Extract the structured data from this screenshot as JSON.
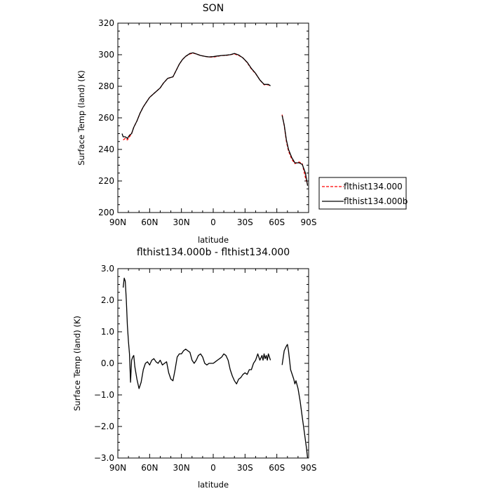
{
  "chart_data": [
    {
      "type": "line",
      "title": "SON",
      "xlabel": "latitude",
      "ylabel": "Surface Temp (land) (K)",
      "xlim": [
        90,
        -90
      ],
      "ylim": [
        200,
        320
      ],
      "x_ticks": [
        90,
        60,
        30,
        0,
        -30,
        -60,
        -90
      ],
      "x_tick_labels": [
        "90N",
        "60N",
        "30N",
        "0",
        "30S",
        "60S",
        "90S"
      ],
      "y_ticks": [
        200,
        220,
        240,
        260,
        280,
        300,
        320
      ],
      "y_tick_labels": [
        "200",
        "220",
        "240",
        "260",
        "280",
        "300",
        "320"
      ],
      "legend": "right, outside plot",
      "series": [
        {
          "name": "flthist134.000",
          "color": "#ff0000",
          "dash": "dashed",
          "segments": [
            [
              [
                85,
                246
              ],
              [
                83,
                247
              ],
              [
                81,
                246
              ],
              [
                79,
                248
              ],
              [
                77,
                250
              ],
              [
                75,
                254
              ],
              [
                72,
                258
              ],
              [
                69,
                263
              ],
              [
                66,
                267
              ],
              [
                63,
                270
              ],
              [
                60,
                273
              ],
              [
                55,
                276
              ],
              [
                50,
                279
              ],
              [
                47,
                282
              ],
              [
                43,
                285
              ],
              [
                38,
                286
              ],
              [
                35,
                290
              ],
              [
                32,
                294
              ],
              [
                29,
                297
              ],
              [
                26,
                299
              ],
              [
                22,
                300.5
              ],
              [
                19,
                301
              ],
              [
                16,
                300.5
              ],
              [
                12,
                299.5
              ],
              [
                8,
                299
              ],
              [
                4,
                298.5
              ],
              [
                0,
                298.5
              ],
              [
                -4,
                299
              ],
              [
                -8,
                299.5
              ],
              [
                -12,
                299.5
              ],
              [
                -16,
                300
              ],
              [
                -20,
                300.5
              ],
              [
                -24,
                299.5
              ],
              [
                -28,
                298
              ],
              [
                -32,
                295
              ],
              [
                -36,
                291
              ],
              [
                -40,
                288
              ],
              [
                -44,
                284
              ],
              [
                -48,
                281
              ],
              [
                -52,
                281
              ],
              [
                -54,
                280
              ]
            ],
            [
              [
                -65,
                262
              ],
              [
                -67,
                255
              ],
              [
                -69,
                245
              ],
              [
                -71,
                239
              ],
              [
                -74,
                234
              ],
              [
                -77,
                231
              ],
              [
                -81,
                232
              ],
              [
                -84,
                231
              ],
              [
                -87,
                222
              ],
              [
                -89,
                218
              ]
            ]
          ]
        },
        {
          "name": "flthist134.000b",
          "color": "#000000",
          "dash": "solid",
          "segments": [
            [
              [
                86,
                250
              ],
              [
                85,
                248
              ],
              [
                83,
                248
              ],
              [
                81,
                247
              ],
              [
                79,
                249
              ],
              [
                77,
                250
              ],
              [
                75,
                254
              ],
              [
                72,
                258
              ],
              [
                69,
                263
              ],
              [
                66,
                267
              ],
              [
                63,
                270
              ],
              [
                60,
                273
              ],
              [
                55,
                276
              ],
              [
                50,
                279
              ],
              [
                47,
                282
              ],
              [
                43,
                285
              ],
              [
                38,
                286
              ],
              [
                35,
                290
              ],
              [
                32,
                294
              ],
              [
                29,
                297
              ],
              [
                26,
                299
              ],
              [
                22,
                300.8
              ],
              [
                19,
                301.2
              ],
              [
                16,
                300.5
              ],
              [
                12,
                299.5
              ],
              [
                8,
                299
              ],
              [
                4,
                298.6
              ],
              [
                0,
                298.8
              ],
              [
                -4,
                299.2
              ],
              [
                -8,
                299.5
              ],
              [
                -12,
                299.7
              ],
              [
                -16,
                300
              ],
              [
                -20,
                300.8
              ],
              [
                -24,
                299.8
              ],
              [
                -28,
                298
              ],
              [
                -32,
                295.2
              ],
              [
                -36,
                291.3
              ],
              [
                -40,
                288.2
              ],
              [
                -44,
                284
              ],
              [
                -48,
                281.2
              ],
              [
                -52,
                281.2
              ],
              [
                -54,
                280.3
              ]
            ],
            [
              [
                -65,
                261.5
              ],
              [
                -67,
                255.5
              ],
              [
                -69,
                246
              ],
              [
                -71,
                240
              ],
              [
                -74,
                235
              ],
              [
                -77,
                231.5
              ],
              [
                -81,
                231.5
              ],
              [
                -84,
                230.5
              ],
              [
                -87,
                225
              ],
              [
                -89,
                217
              ]
            ]
          ]
        }
      ]
    },
    {
      "type": "line",
      "title": "flthist134.000b - flthist134.000",
      "xlabel": "latitude",
      "ylabel": "Surface Temp (land) (K)",
      "xlim": [
        90,
        -90
      ],
      "ylim": [
        -3.0,
        3.0
      ],
      "x_ticks": [
        90,
        60,
        30,
        0,
        -30,
        -60,
        -90
      ],
      "x_tick_labels": [
        "90N",
        "60N",
        "30N",
        "0",
        "30S",
        "60S",
        "90S"
      ],
      "y_ticks": [
        -3.0,
        -2.0,
        -1.0,
        0.0,
        1.0,
        2.0,
        3.0
      ],
      "y_tick_labels": [
        "−3.0",
        "−2.0",
        "−1.0",
        "0.0",
        "1.0",
        "2.0",
        "3.0"
      ],
      "series": [
        {
          "name": "",
          "color": "#000000",
          "dash": "solid",
          "segments": [
            [
              [
                85,
                2.4
              ],
              [
                84,
                2.7
              ],
              [
                83,
                2.6
              ],
              [
                82,
                2.0
              ],
              [
                81,
                1.2
              ],
              [
                80,
                0.7
              ],
              [
                79,
                0.3
              ],
              [
                78,
                -0.6
              ],
              [
                77,
                0.1
              ],
              [
                76,
                0.2
              ],
              [
                75,
                0.25
              ],
              [
                74,
                -0.1
              ],
              [
                72,
                -0.5
              ],
              [
                70,
                -0.8
              ],
              [
                68,
                -0.6
              ],
              [
                66,
                -0.2
              ],
              [
                64,
                0.0
              ],
              [
                62,
                0.05
              ],
              [
                60,
                -0.05
              ],
              [
                58,
                0.1
              ],
              [
                56,
                0.15
              ],
              [
                54,
                0.05
              ],
              [
                52,
                0.0
              ],
              [
                50,
                0.1
              ],
              [
                48,
                -0.05
              ],
              [
                46,
                0.0
              ],
              [
                44,
                0.05
              ],
              [
                42,
                -0.3
              ],
              [
                40,
                -0.5
              ],
              [
                38,
                -0.55
              ],
              [
                36,
                -0.2
              ],
              [
                34,
                0.2
              ],
              [
                32,
                0.3
              ],
              [
                30,
                0.3
              ],
              [
                28,
                0.4
              ],
              [
                26,
                0.45
              ],
              [
                24,
                0.4
              ],
              [
                22,
                0.35
              ],
              [
                20,
                0.1
              ],
              [
                18,
                0.0
              ],
              [
                16,
                0.1
              ],
              [
                14,
                0.25
              ],
              [
                12,
                0.3
              ],
              [
                10,
                0.2
              ],
              [
                8,
                0.0
              ],
              [
                6,
                -0.05
              ],
              [
                4,
                0.0
              ],
              [
                2,
                0.0
              ],
              [
                0,
                0.0
              ],
              [
                -2,
                0.05
              ],
              [
                -4,
                0.1
              ],
              [
                -6,
                0.15
              ],
              [
                -8,
                0.2
              ],
              [
                -10,
                0.3
              ],
              [
                -12,
                0.25
              ],
              [
                -14,
                0.1
              ],
              [
                -16,
                -0.2
              ],
              [
                -18,
                -0.4
              ],
              [
                -20,
                -0.55
              ],
              [
                -22,
                -0.65
              ],
              [
                -24,
                -0.5
              ],
              [
                -26,
                -0.45
              ],
              [
                -28,
                -0.35
              ],
              [
                -30,
                -0.3
              ],
              [
                -32,
                -0.35
              ],
              [
                -34,
                -0.2
              ],
              [
                -36,
                -0.2
              ],
              [
                -38,
                0.0
              ],
              [
                -40,
                0.1
              ],
              [
                -42,
                0.3
              ],
              [
                -44,
                0.1
              ],
              [
                -46,
                0.25
              ],
              [
                -47,
                0.1
              ],
              [
                -48,
                0.3
              ],
              [
                -49,
                0.15
              ],
              [
                -50,
                0.25
              ],
              [
                -51,
                0.1
              ],
              [
                -52,
                0.3
              ],
              [
                -54,
                0.1
              ]
            ],
            [
              [
                -65,
                -0.05
              ],
              [
                -67,
                0.4
              ],
              [
                -69,
                0.55
              ],
              [
                -70,
                0.6
              ],
              [
                -71,
                0.4
              ],
              [
                -73,
                -0.2
              ],
              [
                -75,
                -0.4
              ],
              [
                -76,
                -0.5
              ],
              [
                -77,
                -0.65
              ],
              [
                -78,
                -0.55
              ],
              [
                -80,
                -0.8
              ],
              [
                -82,
                -1.2
              ],
              [
                -84,
                -1.7
              ],
              [
                -86,
                -2.2
              ],
              [
                -88,
                -2.7
              ],
              [
                -89,
                -3.0
              ]
            ]
          ]
        }
      ]
    }
  ]
}
